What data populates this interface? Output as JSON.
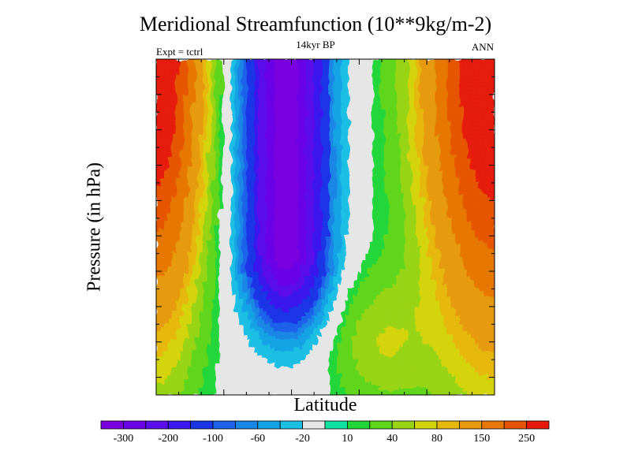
{
  "chart_data": {
    "type": "heatmap",
    "title": "Meridional Streamfunction (10**9kg/m-2)",
    "subtitle": "14kyr BP",
    "left_subtitle": "Expt = tctrl",
    "right_subtitle": "ANN",
    "xlabel": "Latitude",
    "ylabel": "Pressure (in hPa)",
    "contour_levels": [
      -300,
      -250,
      -200,
      -150,
      -100,
      -80,
      -60,
      -40,
      -20,
      -10,
      10,
      20,
      40,
      60,
      80,
      100,
      150,
      200,
      250,
      300
    ],
    "colorbar_tick_labels": [
      "-300",
      "-200",
      "-100",
      "-60",
      "-20",
      "10",
      "40",
      "80",
      "150",
      "250"
    ],
    "colorbar_colors": [
      "#7a00e0",
      "#6a00e6",
      "#5a10ea",
      "#3a18ee",
      "#1a35e6",
      "#1e62ea",
      "#1a86e6",
      "#12a3e6",
      "#1cbfe4",
      "#e6e6e6",
      "#10e0a0",
      "#22d63a",
      "#5ed61a",
      "#98d412",
      "#d4d40c",
      "#e6b80c",
      "#e69a0a",
      "#e67806",
      "#e65406",
      "#e61a0a"
    ]
  }
}
